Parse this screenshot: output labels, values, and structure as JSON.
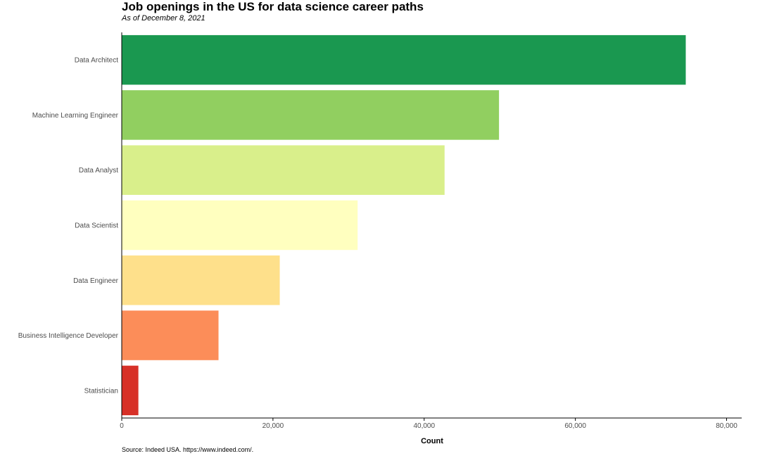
{
  "title": "Job openings in the US for data science career paths",
  "subtitle": "As of December 8, 2021",
  "source": "Source: Indeed USA. https://www.indeed.com/.",
  "chart_data": {
    "type": "bar",
    "orientation": "horizontal",
    "xlabel": "Count",
    "ylabel": "",
    "xlim": [
      0,
      82000
    ],
    "xticks": [
      0,
      20000,
      40000,
      60000,
      80000
    ],
    "xtick_labels": [
      "0",
      "20,000",
      "40,000",
      "60,000",
      "80,000"
    ],
    "grid": false,
    "legend": "none",
    "categories": [
      "Data Architect",
      "Machine Learning Engineer",
      "Data Analyst",
      "Data Scientist",
      "Data Engineer",
      "Business Intelligence Developer",
      "Statistician"
    ],
    "values": [
      74600,
      49900,
      42700,
      31200,
      20900,
      12800,
      2200
    ],
    "colors": [
      "#1a9850",
      "#91cf60",
      "#d9ef8b",
      "#ffffbf",
      "#fee08b",
      "#fc8d59",
      "#d73027"
    ]
  }
}
